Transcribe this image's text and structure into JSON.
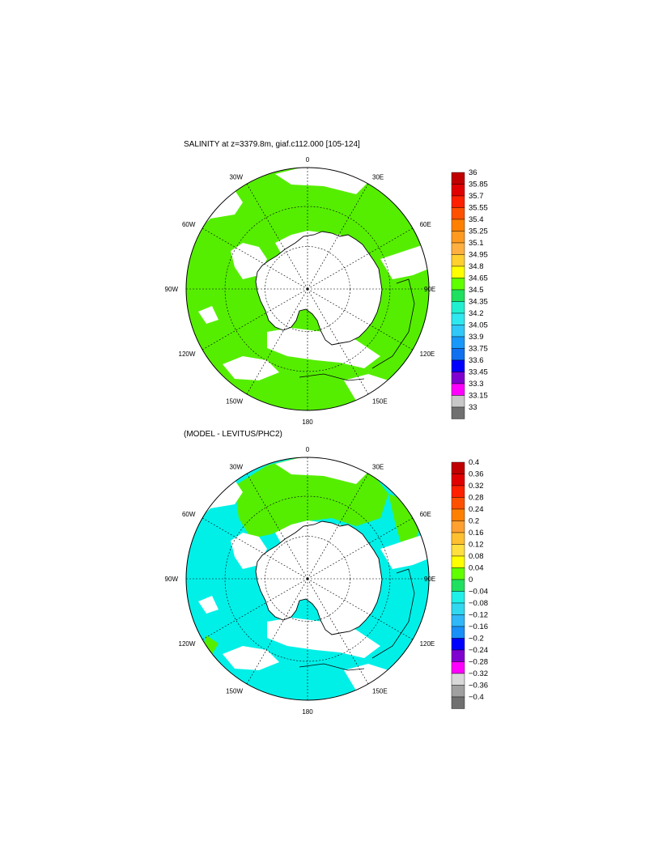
{
  "panels": [
    {
      "title": "SALINITY at z=3379.8m, giaf.c112.000 [105-124]",
      "lon_labels": {
        "top": "0",
        "tr": "30E",
        "r1": "60E",
        "right": "90E",
        "r2": "120E",
        "br": "150E",
        "bottom": "180",
        "bl": "150W",
        "l2": "120W",
        "left": "90W",
        "l1": "60W",
        "tl": "30W"
      },
      "colorbar": {
        "labels": [
          "36",
          "35.85",
          "35.7",
          "35.55",
          "35.4",
          "35.25",
          "35.1",
          "34.95",
          "34.8",
          "34.65",
          "34.5",
          "34.35",
          "34.2",
          "34.05",
          "33.9",
          "33.75",
          "33.6",
          "33.45",
          "33.3",
          "33.15",
          "33"
        ],
        "colors": [
          "#c00000",
          "#e00000",
          "#ff2000",
          "#ff5000",
          "#ff8000",
          "#ff9a20",
          "#ffb040",
          "#ffd030",
          "#ffff00",
          "#60ff00",
          "#20e060",
          "#20f0d0",
          "#30e8f0",
          "#30c8f8",
          "#1898f8",
          "#1070f0",
          "#0000ff",
          "#8000d0",
          "#ff00ff",
          "#c8c8c8",
          "#707070"
        ]
      }
    },
    {
      "title": "(MODEL - LEVITUS/PHC2)",
      "lon_labels": {
        "top": "0",
        "tr": "30E",
        "r1": "60E",
        "right": "90E",
        "r2": "120E",
        "br": "150E",
        "bottom": "180",
        "bl": "150W",
        "l2": "120W",
        "left": "90W",
        "l1": "60W",
        "tl": "30W"
      },
      "colorbar": {
        "labels": [
          "0.4",
          "0.36",
          "0.32",
          "0.28",
          "0.24",
          "0.2",
          "0.16",
          "0.12",
          "0.08",
          "0.04",
          "0",
          "−0.04",
          "−0.08",
          "−0.12",
          "−0.16",
          "−0.2",
          "−0.24",
          "−0.28",
          "−0.32",
          "−0.36",
          "−0.4"
        ],
        "colors": [
          "#c00000",
          "#e00000",
          "#ff2000",
          "#ff5000",
          "#ff8000",
          "#ffa030",
          "#ffc030",
          "#ffe040",
          "#ffff00",
          "#60ff00",
          "#20e060",
          "#20f0e8",
          "#30d8f0",
          "#30b8f8",
          "#1890f8",
          "#0000ff",
          "#8000d0",
          "#ff00ff",
          "#d8d8d8",
          "#a0a0a0",
          "#707070"
        ]
      }
    }
  ]
}
